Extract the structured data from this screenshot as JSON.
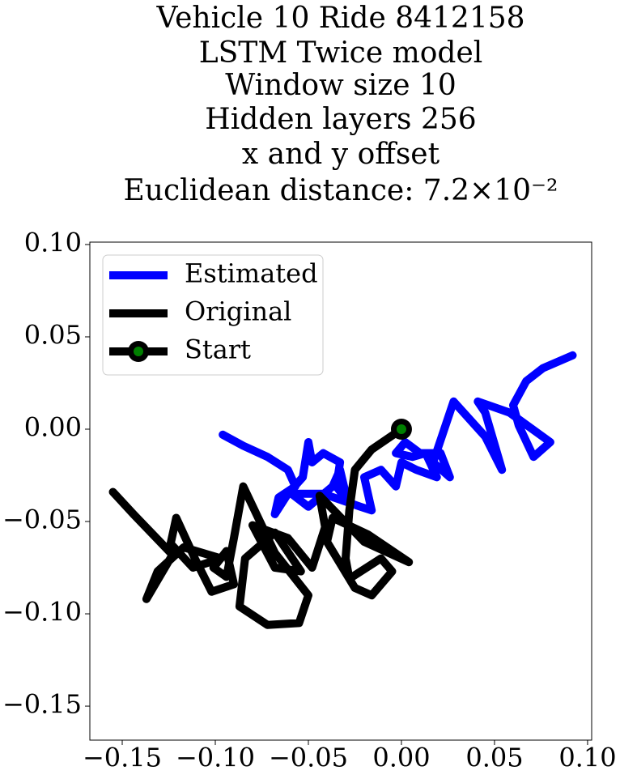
{
  "chart_data": {
    "type": "line",
    "title": [
      "Vehicle 10 Ride 8412158",
      "LSTM Twice model",
      "Window size 10",
      "Hidden layers 256",
      "x and y offset",
      "Euclidean distance: 7.2×10⁻²"
    ],
    "xlim": [
      -0.1674,
      0.1022
    ],
    "ylim": [
      -0.1684,
      0.1013
    ],
    "xticks": [
      {
        "value": -0.15,
        "label": "−0.15"
      },
      {
        "value": -0.1,
        "label": "−0.10"
      },
      {
        "value": -0.05,
        "label": "−0.05"
      },
      {
        "value": 0,
        "label": "0.00"
      },
      {
        "value": 0.05,
        "label": "0.05"
      },
      {
        "value": 0.1,
        "label": "0.10"
      }
    ],
    "yticks": [
      {
        "value": -0.15,
        "label": "−0.15"
      },
      {
        "value": -0.1,
        "label": "−0.10"
      },
      {
        "value": -0.05,
        "label": "−0.05"
      },
      {
        "value": 0,
        "label": "0.00"
      },
      {
        "value": 0.05,
        "label": "0.05"
      },
      {
        "value": 0.1,
        "label": "0.10"
      }
    ],
    "grid": false,
    "legend": "upper left",
    "series": [
      {
        "name": "Estimated",
        "color": "#0000ff",
        "x": [
          -0.096,
          -0.085,
          -0.072,
          -0.061,
          -0.057,
          -0.066,
          -0.068,
          -0.061,
          -0.053,
          -0.05,
          -0.048,
          -0.042,
          -0.033,
          -0.035,
          -0.029,
          -0.033,
          -0.037,
          -0.05,
          -0.059,
          -0.042,
          -0.022,
          -0.016,
          -0.02,
          -0.011,
          -0.003,
          0.0,
          0.008,
          0.019,
          0.013,
          0.006,
          -0.003,
          0.002,
          0.01,
          0.021,
          0.026,
          0.017,
          0.028,
          0.045,
          0.054,
          0.045,
          0.041,
          0.058,
          0.08,
          0.071,
          0.063,
          0.06,
          0.067,
          0.076,
          0.092
        ],
        "values": [
          -0.003,
          -0.009,
          -0.015,
          -0.022,
          -0.031,
          -0.037,
          -0.046,
          -0.035,
          -0.026,
          -0.007,
          -0.018,
          -0.013,
          -0.018,
          -0.031,
          -0.039,
          -0.022,
          -0.031,
          -0.042,
          -0.035,
          -0.035,
          -0.042,
          -0.044,
          -0.026,
          -0.022,
          -0.031,
          -0.018,
          -0.022,
          -0.026,
          -0.013,
          -0.015,
          -0.013,
          -0.007,
          -0.013,
          -0.013,
          -0.026,
          -0.018,
          0.015,
          -0.004,
          -0.022,
          0.009,
          0.015,
          0.009,
          -0.007,
          -0.015,
          0.002,
          0.013,
          0.026,
          0.033,
          0.04
        ]
      },
      {
        "name": "Original",
        "color": "#000000",
        "x": [
          0.0,
          -0.016,
          -0.025,
          -0.028,
          -0.03,
          -0.028,
          -0.011,
          -0.005,
          -0.016,
          -0.025,
          -0.04,
          -0.037,
          -0.018,
          0.004,
          -0.02,
          -0.044,
          -0.041,
          -0.048,
          -0.061,
          -0.08,
          -0.068,
          -0.054,
          -0.068,
          -0.084,
          -0.087,
          -0.072,
          -0.055,
          -0.05,
          -0.068,
          -0.085,
          -0.09,
          -0.094,
          -0.101,
          -0.094,
          -0.09,
          -0.102,
          -0.111,
          -0.121,
          -0.124,
          -0.112,
          -0.097,
          -0.117,
          -0.131,
          -0.137,
          -0.123,
          -0.144,
          -0.155
        ],
        "values": [
          0.0,
          -0.011,
          -0.022,
          -0.044,
          -0.07,
          -0.081,
          -0.07,
          -0.077,
          -0.09,
          -0.086,
          -0.061,
          -0.048,
          -0.057,
          -0.072,
          -0.061,
          -0.036,
          -0.053,
          -0.075,
          -0.059,
          -0.052,
          -0.075,
          -0.077,
          -0.056,
          -0.07,
          -0.096,
          -0.106,
          -0.105,
          -0.09,
          -0.067,
          -0.031,
          -0.059,
          -0.08,
          -0.075,
          -0.066,
          -0.084,
          -0.088,
          -0.07,
          -0.048,
          -0.062,
          -0.075,
          -0.07,
          -0.064,
          -0.077,
          -0.092,
          -0.068,
          -0.046,
          -0.034
        ]
      }
    ],
    "start": {
      "name": "Start",
      "x": 0,
      "y": 0,
      "color": "#000000",
      "face": "#008000"
    }
  }
}
